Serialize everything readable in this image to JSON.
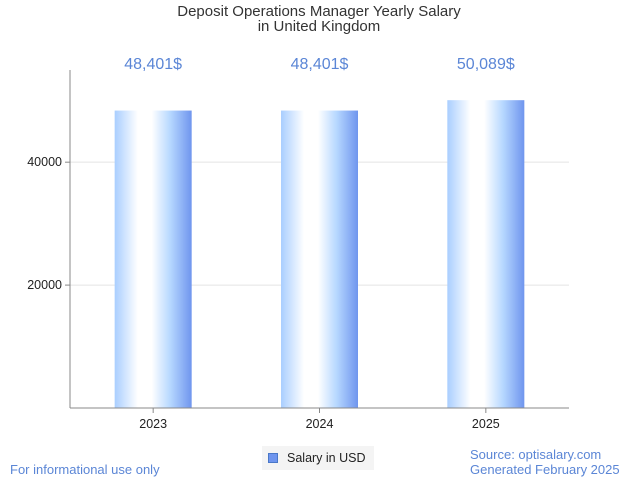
{
  "chart_data": {
    "type": "bar",
    "title_lines": [
      "Deposit Operations Manager Yearly Salary",
      "in United Kingdom"
    ],
    "categories": [
      "2023",
      "2024",
      "2025"
    ],
    "series": [
      {
        "name": "Salary in USD",
        "values": [
          48401,
          48401,
          50089
        ]
      }
    ],
    "data_labels": [
      "48,401$",
      "48,401$",
      "50,089$"
    ],
    "y_ticks": [
      20000,
      40000
    ],
    "ylim": [
      0,
      55000
    ],
    "grid": true,
    "legend": "bottom-center",
    "colors": {
      "bar_edge": "#6f95ee",
      "bar_light": "#ffffff",
      "bar_pale": "#b7d8ff",
      "data_label": "#5b86d6",
      "footer": "#5b86d6",
      "gridline": "#e4e4e4",
      "axis": "#888888"
    }
  },
  "footer": {
    "note": "For informational use only",
    "source": "Source: optisalary.com",
    "generated": "Generated February 2025"
  }
}
